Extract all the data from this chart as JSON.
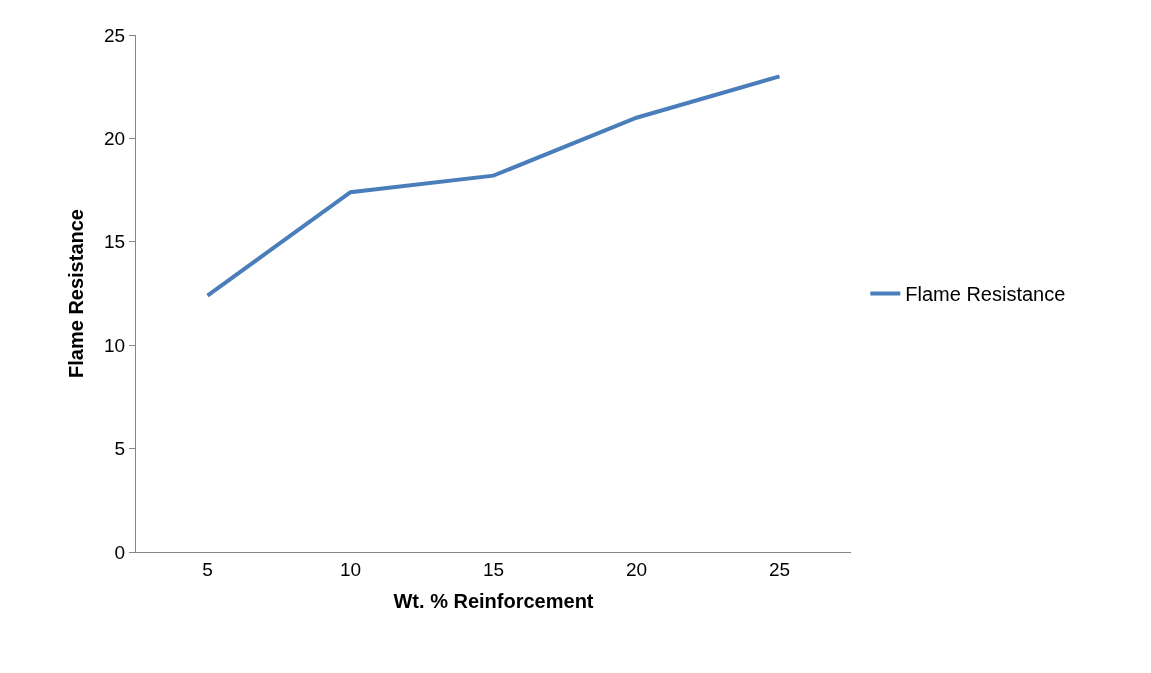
{
  "chart_data": {
    "type": "line",
    "xlabel": "Wt. % Reinforcement",
    "ylabel": "Flame Resistance",
    "categories": [
      "5",
      "10",
      "15",
      "20",
      "25"
    ],
    "series": [
      {
        "name": "Flame Resistance",
        "color": "#4a7ebb",
        "values": [
          12.4,
          17.4,
          18.2,
          21,
          23
        ]
      }
    ],
    "ylim": [
      0,
      25
    ],
    "yticks": [
      0,
      5,
      10,
      15,
      20,
      25
    ],
    "legend": "right",
    "marker": "none",
    "line_style": "solid"
  }
}
